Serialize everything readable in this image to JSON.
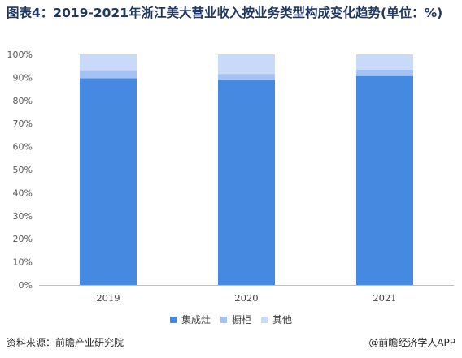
{
  "title": "图表4：2019-2021年浙江美大营业收入按业务类型构成变化趋势(单位：%)",
  "source": "资料来源：前瞻产业研究院",
  "brand": "@前瞻经济学人APP",
  "chart_data": {
    "type": "bar",
    "stacked": true,
    "categories": [
      "2019",
      "2020",
      "2021"
    ],
    "series": [
      {
        "name": "集成灶",
        "color": "#4589e0",
        "values": [
          89.6,
          89.0,
          90.6
        ]
      },
      {
        "name": "橱柜",
        "color": "#a4c2f4",
        "values": [
          3.5,
          2.5,
          2.8
        ]
      },
      {
        "name": "其他",
        "color": "#c9daf8",
        "values": [
          6.9,
          8.5,
          6.6
        ]
      }
    ],
    "yticks": [
      "0%",
      "10%",
      "20%",
      "30%",
      "40%",
      "50%",
      "60%",
      "70%",
      "80%",
      "90%",
      "100%"
    ],
    "ylim": [
      0,
      100
    ],
    "grid": false,
    "legend_position": "bottom"
  }
}
